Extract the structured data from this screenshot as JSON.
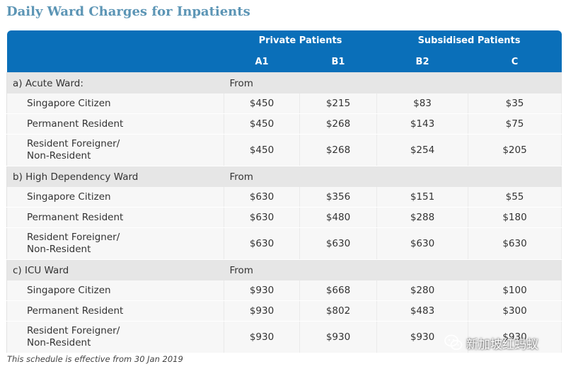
{
  "title": "Daily Ward Charges for Inpatients",
  "groups": {
    "private": "Private Patients",
    "subsidised": "Subsidised Patients"
  },
  "columns": [
    "A1",
    "B1",
    "B2",
    "C"
  ],
  "sections": [
    {
      "label": "a) Acute Ward:",
      "from": "From",
      "rows": [
        {
          "l1": "Singapore Citizen",
          "l2": "",
          "v": [
            "$450",
            "$215",
            "$83",
            "$35"
          ]
        },
        {
          "l1": "Permanent Resident",
          "l2": "",
          "v": [
            "$450",
            "$268",
            "$143",
            "$75"
          ]
        },
        {
          "l1": "Resident Foreigner/",
          "l2": "Non-Resident",
          "v": [
            "$450",
            "$268",
            "$254",
            "$205"
          ]
        }
      ]
    },
    {
      "label": "b) High Dependency Ward",
      "from": "From",
      "rows": [
        {
          "l1": "Singapore Citizen",
          "l2": "",
          "v": [
            "$630",
            "$356",
            "$151",
            "$55"
          ]
        },
        {
          "l1": "Permanent Resident",
          "l2": "",
          "v": [
            "$630",
            "$480",
            "$288",
            "$180"
          ]
        },
        {
          "l1": "Resident Foreigner/",
          "l2": "Non-Resident",
          "v": [
            "$630",
            "$630",
            "$630",
            "$630"
          ]
        }
      ]
    },
    {
      "label": "c) ICU Ward",
      "from": "From",
      "rows": [
        {
          "l1": "Singapore Citizen",
          "l2": "",
          "v": [
            "$930",
            "$668",
            "$280",
            "$100"
          ]
        },
        {
          "l1": "Permanent Resident",
          "l2": "",
          "v": [
            "$930",
            "$802",
            "$483",
            "$300"
          ]
        },
        {
          "l1": "Resident Foreigner/",
          "l2": "Non-Resident",
          "v": [
            "$930",
            "$930",
            "$930",
            "$930"
          ]
        }
      ]
    }
  ],
  "note": "This schedule is effective from 30 Jan 2019",
  "watermark": {
    "text": "新加坡红蚂蚁",
    "icon": "wechat-icon"
  }
}
